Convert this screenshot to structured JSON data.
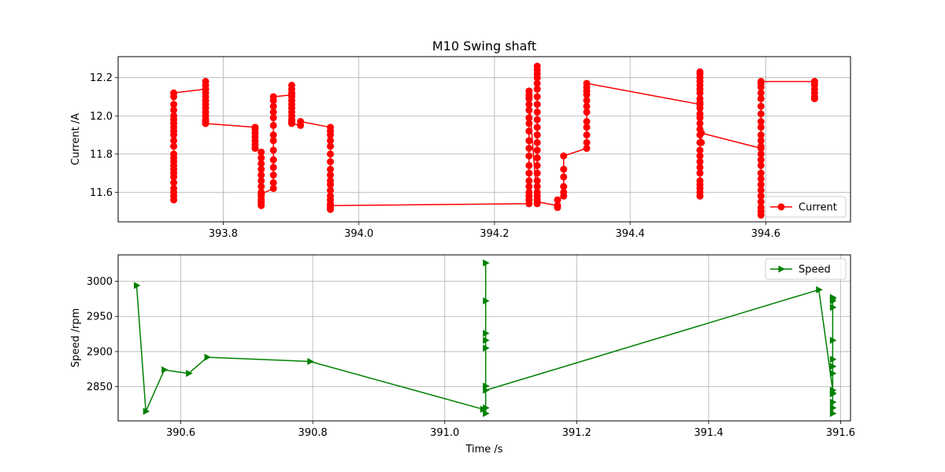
{
  "figure": {
    "title": "M10 Swing shaft"
  },
  "chart_data": [
    {
      "type": "line",
      "xlim": [
        393.645,
        394.725
      ],
      "ylim": [
        11.445,
        12.31
      ],
      "xticks": [
        "393.8",
        "394.0",
        "394.2",
        "394.4",
        "394.6"
      ],
      "xtick_values": [
        393.8,
        394.0,
        394.2,
        394.4,
        394.6
      ],
      "yticks": [
        "11.6",
        "11.8",
        "12.0",
        "12.2"
      ],
      "ytick_values": [
        11.6,
        11.8,
        12.0,
        12.2
      ],
      "ylabel": "Current /A",
      "xlabel": "",
      "grid": true,
      "legend": "lower-right",
      "color": "#ff0000",
      "marker": "circle",
      "series": [
        {
          "name": "Current",
          "x": [
            393.727,
            393.727,
            393.727,
            393.727,
            393.727,
            393.727,
            393.727,
            393.727,
            393.727,
            393.727,
            393.727,
            393.727,
            393.727,
            393.727,
            393.727,
            393.727,
            393.727,
            393.727,
            393.727,
            393.727,
            393.727,
            393.727,
            393.727,
            393.727,
            393.774,
            393.774,
            393.774,
            393.774,
            393.774,
            393.774,
            393.774,
            393.774,
            393.774,
            393.774,
            393.774,
            393.774,
            393.774,
            393.774,
            393.774,
            393.847,
            393.847,
            393.847,
            393.847,
            393.847,
            393.847,
            393.847,
            393.856,
            393.856,
            393.856,
            393.856,
            393.856,
            393.856,
            393.856,
            393.856,
            393.856,
            393.856,
            393.856,
            393.856,
            393.856,
            393.856,
            393.874,
            393.874,
            393.874,
            393.874,
            393.874,
            393.874,
            393.874,
            393.874,
            393.874,
            393.874,
            393.874,
            393.874,
            393.874,
            393.874,
            393.901,
            393.901,
            393.901,
            393.901,
            393.901,
            393.901,
            393.901,
            393.901,
            393.901,
            393.901,
            393.901,
            393.901,
            393.901,
            393.901,
            393.914,
            393.914,
            393.958,
            393.958,
            393.958,
            393.958,
            393.958,
            393.958,
            393.958,
            393.958,
            393.958,
            393.958,
            393.958,
            393.958,
            393.958,
            393.958,
            393.958,
            393.958,
            393.958,
            393.958,
            394.251,
            394.251,
            394.251,
            394.251,
            394.251,
            394.251,
            394.251,
            394.251,
            394.251,
            394.251,
            394.251,
            394.251,
            394.251,
            394.251,
            394.251,
            394.251,
            394.251,
            394.251,
            394.251,
            394.251,
            394.263,
            394.263,
            394.263,
            394.263,
            394.263,
            394.263,
            394.263,
            394.263,
            394.263,
            394.263,
            394.263,
            394.263,
            394.263,
            394.263,
            394.263,
            394.263,
            394.263,
            394.263,
            394.263,
            394.263,
            394.263,
            394.263,
            394.263,
            394.263,
            394.293,
            394.293,
            394.293,
            394.302,
            394.302,
            394.302,
            394.302,
            394.302,
            394.302,
            394.336,
            394.336,
            394.336,
            394.336,
            394.336,
            394.336,
            394.336,
            394.336,
            394.336,
            394.336,
            394.336,
            394.336,
            394.503,
            394.503,
            394.503,
            394.503,
            394.503,
            394.503,
            394.503,
            394.503,
            394.503,
            394.503,
            394.503,
            394.503,
            394.503,
            394.503,
            394.503,
            394.503,
            394.503,
            394.503,
            394.503,
            394.503,
            394.503,
            394.503,
            394.503,
            394.503,
            394.503,
            394.503,
            394.503,
            394.505,
            394.505,
            394.593,
            394.593,
            394.593,
            394.593,
            394.593,
            394.593,
            394.593,
            394.593,
            394.593,
            394.593,
            394.593,
            394.593,
            394.593,
            394.593,
            394.593,
            394.593,
            394.593,
            394.593,
            394.593,
            394.593,
            394.593,
            394.593,
            394.593,
            394.593,
            394.593,
            394.672,
            394.672,
            394.672,
            394.672,
            394.672,
            394.672,
            394.672
          ],
          "y": [
            11.56,
            11.58,
            11.6,
            11.62,
            11.65,
            11.68,
            11.7,
            11.72,
            11.74,
            11.76,
            11.78,
            11.8,
            11.84,
            11.87,
            11.9,
            11.92,
            11.94,
            11.96,
            11.98,
            12.0,
            12.03,
            12.06,
            12.1,
            12.12,
            12.14,
            12.18,
            12.16,
            12.14,
            12.12,
            12.1,
            12.08,
            12.06,
            12.04,
            12.02,
            12.0,
            11.98,
            11.97,
            11.96,
            11.96,
            11.94,
            11.93,
            11.91,
            11.89,
            11.87,
            11.85,
            11.83,
            11.81,
            11.78,
            11.75,
            11.72,
            11.69,
            11.66,
            11.63,
            11.6,
            11.58,
            11.56,
            11.55,
            11.54,
            11.53,
            11.59,
            11.62,
            11.65,
            11.69,
            11.73,
            11.77,
            11.82,
            11.87,
            11.9,
            11.95,
            11.99,
            12.02,
            12.05,
            12.08,
            12.1,
            12.11,
            12.16,
            12.14,
            12.12,
            12.1,
            12.08,
            12.06,
            12.04,
            12.02,
            12.0,
            11.98,
            11.97,
            11.97,
            11.96,
            11.95,
            11.97,
            11.94,
            11.92,
            11.9,
            11.87,
            11.84,
            11.8,
            11.76,
            11.72,
            11.69,
            11.66,
            11.64,
            11.61,
            11.58,
            11.56,
            11.54,
            11.52,
            11.51,
            11.53,
            11.54,
            11.56,
            11.58,
            11.6,
            11.63,
            11.66,
            11.7,
            11.74,
            11.79,
            11.83,
            11.87,
            11.92,
            11.96,
            11.99,
            12.03,
            12.06,
            12.09,
            12.11,
            12.13,
            12.1,
            11.54,
            11.56,
            11.58,
            11.6,
            11.63,
            11.66,
            11.7,
            11.74,
            11.78,
            11.82,
            11.86,
            11.9,
            11.94,
            11.98,
            12.02,
            12.06,
            12.1,
            12.14,
            12.17,
            12.2,
            12.22,
            12.24,
            12.26,
            11.55,
            11.53,
            11.52,
            11.56,
            11.58,
            11.6,
            11.63,
            11.68,
            11.72,
            11.79,
            11.83,
            11.86,
            11.9,
            11.94,
            11.97,
            12.02,
            12.05,
            12.08,
            12.11,
            12.13,
            12.15,
            12.17,
            12.06,
            11.58,
            11.6,
            11.62,
            11.64,
            11.66,
            11.7,
            11.73,
            11.76,
            11.79,
            11.82,
            11.86,
            11.9,
            11.93,
            11.96,
            11.99,
            12.01,
            12.04,
            12.07,
            12.09,
            12.12,
            12.14,
            12.16,
            12.18,
            12.2,
            12.22,
            12.23,
            11.86,
            11.91,
            11.83,
            11.48,
            11.5,
            11.52,
            11.55,
            11.58,
            11.61,
            11.64,
            11.67,
            11.7,
            11.74,
            11.77,
            11.8,
            11.84,
            11.87,
            11.9,
            11.94,
            11.97,
            12.01,
            12.05,
            12.09,
            12.12,
            12.15,
            12.17,
            12.18,
            12.18,
            12.17,
            12.16,
            12.14,
            12.12,
            12.1,
            12.09
          ]
        }
      ]
    },
    {
      "type": "line",
      "xlim": [
        390.505,
        391.615
      ],
      "ylim": [
        2801.5,
        3037.5
      ],
      "xticks": [
        "390.6",
        "390.8",
        "391.0",
        "391.2",
        "391.4",
        "391.6"
      ],
      "xtick_values": [
        390.6,
        390.8,
        391.0,
        391.2,
        391.4,
        391.6
      ],
      "yticks": [
        "2850",
        "2900",
        "2950",
        "3000"
      ],
      "ytick_values": [
        2850,
        2900,
        2950,
        3000
      ],
      "ylabel": "Speed /rpm",
      "xlabel": "Time /s",
      "grid": true,
      "legend": "top-right",
      "color": "#008000",
      "marker": "triangle-right",
      "series": [
        {
          "name": "Speed",
          "x": [
            390.533,
            390.547,
            390.575,
            390.612,
            390.64,
            390.796,
            391.058,
            391.062,
            391.062,
            391.062,
            391.062,
            391.062,
            391.062,
            391.062,
            391.062,
            391.062,
            391.567,
            391.588,
            391.588,
            391.588,
            391.588,
            391.588,
            391.588,
            391.588,
            391.588,
            391.588,
            391.588,
            391.588,
            391.588,
            391.588,
            391.588
          ],
          "y": [
            2994,
            2815,
            2874,
            2869,
            2892,
            2886,
            2818,
            2812,
            2820,
            2851,
            2905,
            2916,
            2926,
            2972,
            3026,
            2845,
            2988,
            2845,
            2812,
            2820,
            2828,
            2841,
            2869,
            2879,
            2889,
            2916,
            2963,
            2972,
            2977,
            2975,
            2840
          ]
        }
      ]
    }
  ]
}
